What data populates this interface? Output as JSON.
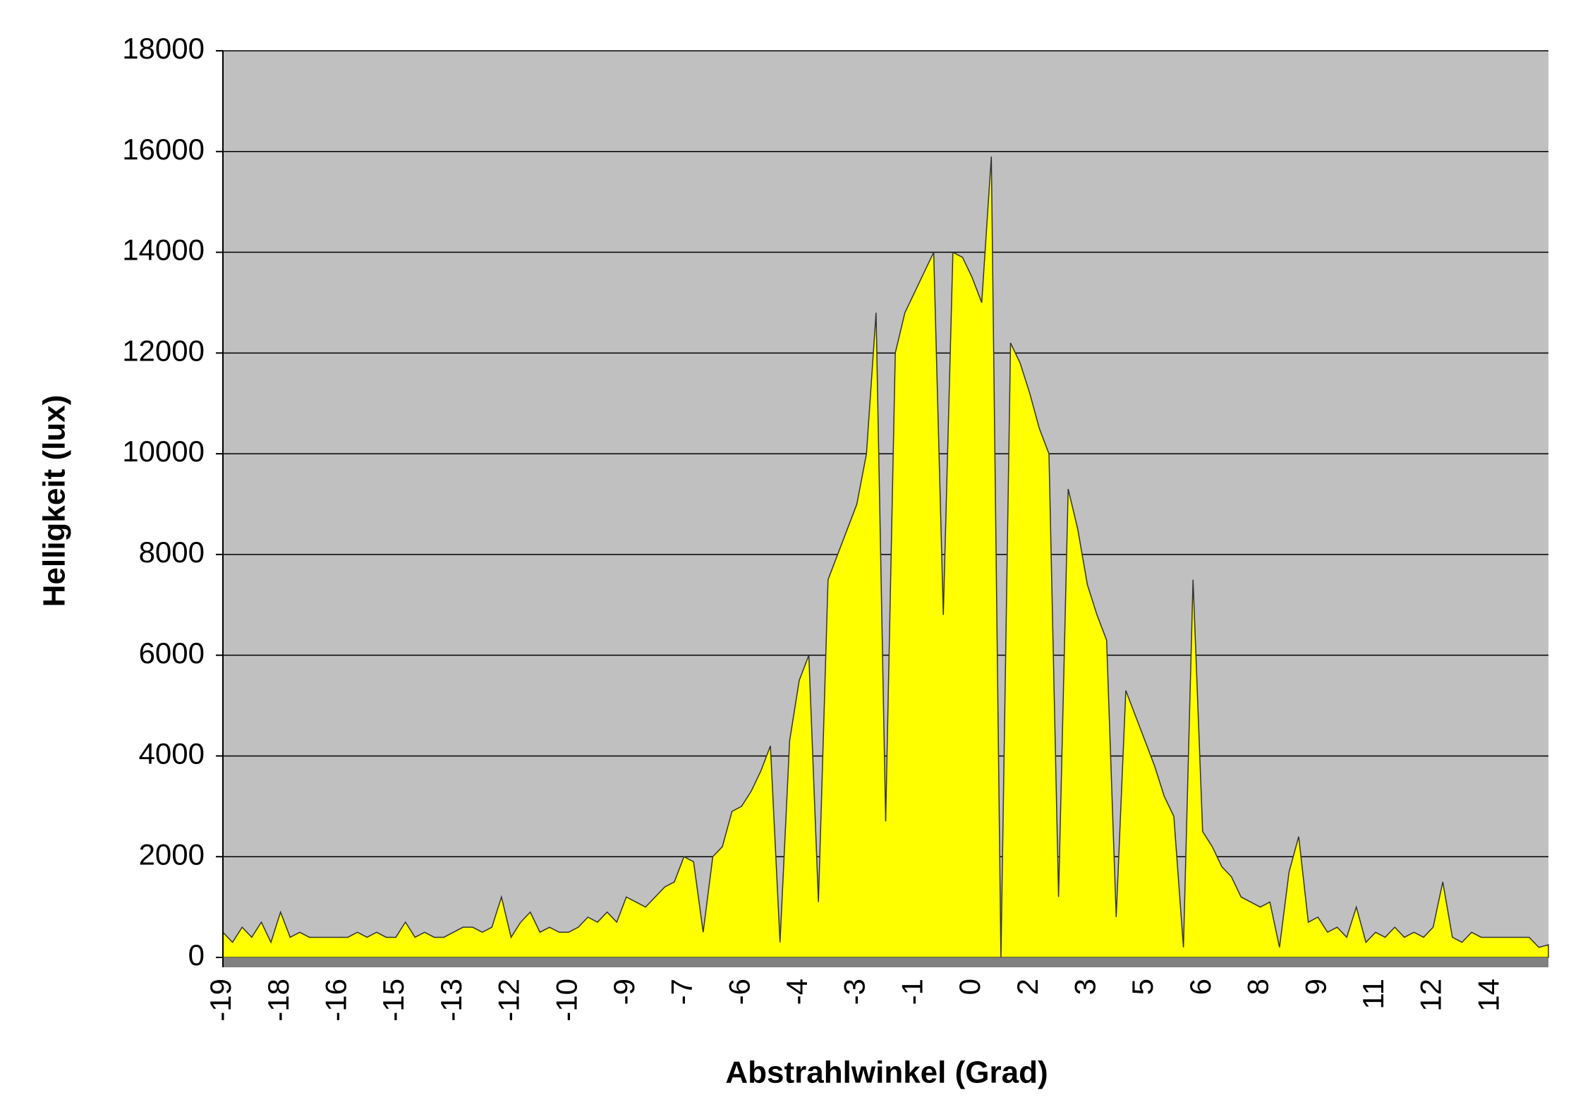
{
  "chart_data": {
    "type": "area",
    "x_label": "Abstrahlwinkel (Grad)",
    "y_label": "Helligkeit (lux)",
    "categories": [
      "-19",
      null,
      null,
      null,
      null,
      null,
      "-18",
      null,
      null,
      null,
      null,
      null,
      "-16",
      null,
      null,
      null,
      null,
      null,
      "-15",
      null,
      null,
      null,
      null,
      null,
      "-13",
      null,
      null,
      null,
      null,
      null,
      "-12",
      null,
      null,
      null,
      null,
      null,
      "-10",
      null,
      null,
      null,
      null,
      null,
      "-9",
      null,
      null,
      null,
      null,
      null,
      "-7",
      null,
      null,
      null,
      null,
      null,
      "-6",
      null,
      null,
      null,
      null,
      null,
      "-4",
      null,
      null,
      null,
      null,
      null,
      "-3",
      null,
      null,
      null,
      null,
      null,
      "-1",
      null,
      null,
      null,
      null,
      null,
      "0",
      null,
      null,
      null,
      null,
      null,
      "2",
      null,
      null,
      null,
      null,
      null,
      "3",
      null,
      null,
      null,
      null,
      null,
      "5",
      null,
      null,
      null,
      null,
      null,
      "6",
      null,
      null,
      null,
      null,
      null,
      "8",
      null,
      null,
      null,
      null,
      null,
      "9",
      null,
      null,
      null,
      null,
      null,
      "11",
      null,
      null,
      null,
      null,
      null,
      "12",
      null,
      null,
      null,
      null,
      null,
      "14",
      null,
      null,
      null,
      null,
      null,
      null
    ],
    "values": [
      500,
      300,
      600,
      400,
      700,
      300,
      900,
      400,
      500,
      400,
      400,
      400,
      400,
      400,
      500,
      400,
      500,
      400,
      400,
      700,
      400,
      500,
      400,
      400,
      500,
      600,
      600,
      500,
      600,
      1200,
      400,
      700,
      900,
      500,
      600,
      500,
      500,
      600,
      800,
      700,
      900,
      700,
      1200,
      1100,
      1000,
      1200,
      1400,
      1500,
      2000,
      1900,
      500,
      2000,
      2200,
      2900,
      3000,
      3300,
      3700,
      4200,
      300,
      4300,
      5500,
      6000,
      1100,
      7500,
      8000,
      8500,
      9000,
      10000,
      12800,
      2700,
      12000,
      12800,
      13200,
      13600,
      14000,
      6800,
      14000,
      13900,
      13500,
      13000,
      15900,
      0,
      12200,
      11800,
      11200,
      10500,
      10000,
      1200,
      9300,
      8500,
      7400,
      6800,
      6300,
      800,
      5300,
      4800,
      4300,
      3800,
      3200,
      2800,
      200,
      7500,
      2500,
      2200,
      1800,
      1600,
      1200,
      1100,
      1000,
      1100,
      200,
      1700,
      2400,
      700,
      800,
      500,
      600,
      400,
      1000,
      300,
      500,
      400,
      600,
      400,
      500,
      400,
      600,
      1500,
      400,
      300,
      500,
      400,
      400,
      400,
      400,
      400,
      400,
      200,
      250
    ],
    "color": "#ffff00",
    "line_color": "#333333",
    "background": "#c0c0c0",
    "ylim": [
      0,
      18000
    ],
    "yticks": [
      0,
      2000,
      4000,
      6000,
      8000,
      10000,
      12000,
      14000,
      16000,
      18000
    ],
    "grid": true
  }
}
